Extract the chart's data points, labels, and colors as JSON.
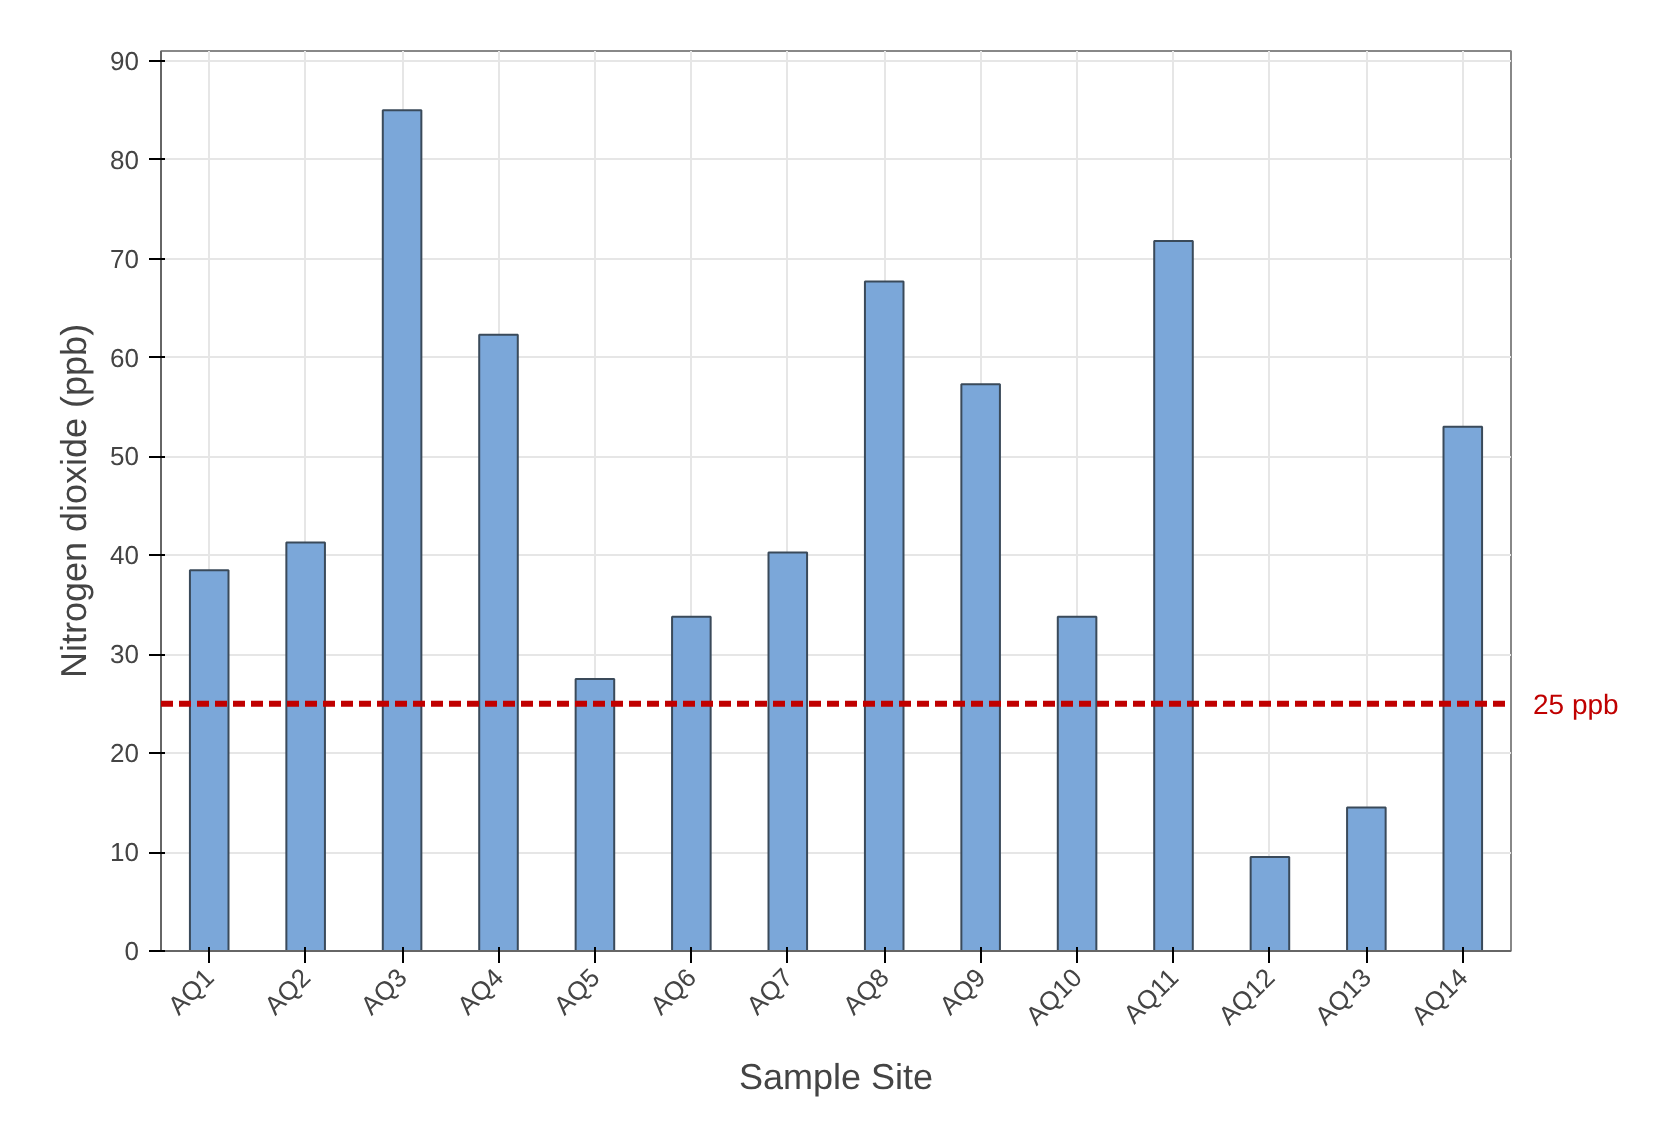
{
  "chart_data": {
    "type": "bar",
    "xlabel": "Sample Site",
    "ylabel": "Nitrogen dioxide (ppb)",
    "categories": [
      "AQ1",
      "AQ2",
      "AQ3",
      "AQ4",
      "AQ5",
      "AQ6",
      "AQ7",
      "AQ8",
      "AQ9",
      "AQ10",
      "AQ11",
      "AQ12",
      "AQ13",
      "AQ14"
    ],
    "values": [
      38.5,
      41.3,
      85,
      62.3,
      27.5,
      33.8,
      40.3,
      67.7,
      57.3,
      33.8,
      71.8,
      9.5,
      14.5,
      53
    ],
    "color": "#7ba7d9",
    "ylim": [
      0,
      91
    ],
    "yticks": [
      0,
      10,
      20,
      30,
      40,
      50,
      60,
      70,
      80,
      90
    ],
    "grid": true,
    "ref_lines": [
      {
        "axis": "y",
        "value": 25,
        "label": "25 ppb",
        "color": "#c00000",
        "line_style": "dashed"
      }
    ]
  }
}
